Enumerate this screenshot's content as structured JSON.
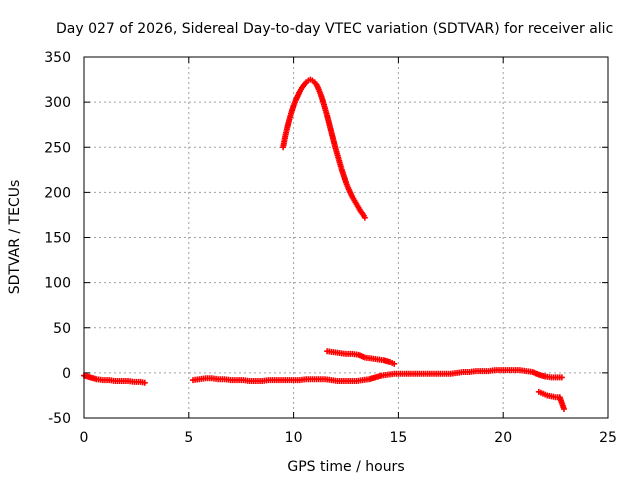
{
  "chart_data": {
    "type": "scatter",
    "title": "Day 027 of 2026, Sidereal Day-to-day VTEC variation (SDTVAR) for receiver alic",
    "xlabel": "GPS time / hours",
    "ylabel": "SDTVAR / TECUs",
    "xlim": [
      0,
      25
    ],
    "ylim": [
      -50,
      350
    ],
    "xticks": [
      "0",
      "5",
      "10",
      "15",
      "20",
      "25"
    ],
    "yticks": [
      "-50",
      "0",
      "50",
      "100",
      "150",
      "200",
      "250",
      "300",
      "350"
    ],
    "grid": true,
    "marker": "plus",
    "color": "#ff0000",
    "series": [
      {
        "points": [
          [
            0.0,
            -3
          ],
          [
            0.3,
            -5
          ],
          [
            0.6,
            -7
          ],
          [
            0.9,
            -8
          ],
          [
            1.2,
            -8
          ],
          [
            1.5,
            -9
          ],
          [
            1.8,
            -9
          ],
          [
            2.1,
            -9
          ],
          [
            2.4,
            -10
          ],
          [
            2.7,
            -10
          ],
          [
            2.9,
            -11
          ]
        ]
      },
      {
        "points": [
          [
            5.2,
            -8
          ],
          [
            5.5,
            -7
          ],
          [
            5.8,
            -6
          ],
          [
            6.1,
            -6
          ],
          [
            6.4,
            -7
          ],
          [
            6.7,
            -7
          ],
          [
            7.0,
            -8
          ],
          [
            7.3,
            -8
          ],
          [
            7.6,
            -8
          ],
          [
            7.9,
            -9
          ],
          [
            8.2,
            -9
          ],
          [
            8.5,
            -9
          ],
          [
            8.8,
            -8
          ],
          [
            9.1,
            -8
          ],
          [
            9.4,
            -8
          ],
          [
            9.7,
            -8
          ],
          [
            10.0,
            -8
          ],
          [
            10.3,
            -8
          ],
          [
            10.6,
            -7
          ],
          [
            10.9,
            -7
          ],
          [
            11.2,
            -7
          ],
          [
            11.5,
            -7
          ],
          [
            11.8,
            -8
          ],
          [
            12.1,
            -9
          ],
          [
            12.4,
            -9
          ],
          [
            12.7,
            -9
          ],
          [
            13.0,
            -9
          ],
          [
            13.3,
            -8
          ],
          [
            13.6,
            -7
          ],
          [
            13.9,
            -5
          ],
          [
            14.2,
            -3
          ],
          [
            14.5,
            -2
          ],
          [
            14.8,
            -1
          ],
          [
            15.1,
            -1
          ],
          [
            15.4,
            -1
          ],
          [
            15.7,
            -1
          ],
          [
            16.0,
            -1
          ],
          [
            16.3,
            -1
          ],
          [
            16.6,
            -1
          ],
          [
            16.9,
            -1
          ],
          [
            17.2,
            -1
          ],
          [
            17.5,
            -1
          ],
          [
            17.8,
            0
          ],
          [
            18.1,
            1
          ],
          [
            18.4,
            1
          ],
          [
            18.7,
            2
          ],
          [
            19.0,
            2
          ],
          [
            19.3,
            2
          ],
          [
            19.6,
            3
          ],
          [
            19.9,
            3
          ],
          [
            20.2,
            3
          ],
          [
            20.5,
            3
          ],
          [
            20.8,
            3
          ],
          [
            21.1,
            2
          ],
          [
            21.4,
            1
          ],
          [
            21.7,
            -2
          ],
          [
            22.0,
            -4
          ],
          [
            22.3,
            -5
          ],
          [
            22.6,
            -5
          ],
          [
            22.8,
            -5
          ]
        ]
      },
      {
        "points": [
          [
            9.5,
            250
          ],
          [
            9.6,
            262
          ],
          [
            9.7,
            272
          ],
          [
            9.8,
            281
          ],
          [
            9.9,
            289
          ],
          [
            10.0,
            296
          ],
          [
            10.1,
            302
          ],
          [
            10.2,
            307
          ],
          [
            10.3,
            312
          ],
          [
            10.4,
            316
          ],
          [
            10.5,
            319
          ],
          [
            10.6,
            322
          ],
          [
            10.7,
            324
          ],
          [
            10.8,
            325
          ],
          [
            10.9,
            324
          ],
          [
            11.0,
            322
          ],
          [
            11.1,
            319
          ],
          [
            11.2,
            314
          ],
          [
            11.3,
            308
          ],
          [
            11.4,
            301
          ],
          [
            11.5,
            293
          ],
          [
            11.6,
            285
          ],
          [
            11.7,
            276
          ],
          [
            11.8,
            267
          ],
          [
            11.9,
            258
          ],
          [
            12.0,
            249
          ],
          [
            12.1,
            241
          ],
          [
            12.2,
            233
          ],
          [
            12.3,
            225
          ],
          [
            12.4,
            218
          ],
          [
            12.5,
            211
          ],
          [
            12.6,
            205
          ],
          [
            12.7,
            200
          ],
          [
            12.8,
            195
          ],
          [
            12.9,
            191
          ],
          [
            13.0,
            187
          ],
          [
            13.1,
            183
          ],
          [
            13.2,
            179
          ],
          [
            13.3,
            176
          ],
          [
            13.4,
            172
          ]
        ]
      },
      {
        "points": [
          [
            11.6,
            24
          ],
          [
            11.9,
            23
          ],
          [
            12.2,
            22
          ],
          [
            12.5,
            21
          ],
          [
            12.8,
            21
          ],
          [
            13.1,
            20
          ],
          [
            13.4,
            17
          ],
          [
            13.7,
            16
          ],
          [
            14.0,
            15
          ],
          [
            14.3,
            14
          ],
          [
            14.6,
            12
          ],
          [
            14.8,
            10
          ]
        ]
      },
      {
        "points": [
          [
            21.7,
            -21
          ],
          [
            21.9,
            -23
          ],
          [
            22.1,
            -25
          ],
          [
            22.3,
            -26
          ],
          [
            22.5,
            -27
          ],
          [
            22.7,
            -27
          ],
          [
            22.9,
            -40
          ]
        ]
      }
    ]
  }
}
